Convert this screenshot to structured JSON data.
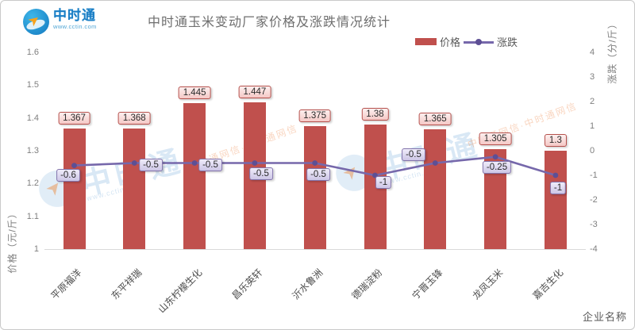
{
  "brand": {
    "name": "中时通",
    "url": "www.cctin.com"
  },
  "header": {
    "title": "中时通玉米变动厂家价格及涨跌情况统计"
  },
  "watermark": {
    "brand_text": "中时通",
    "url_text": "www.cctin.com",
    "line_text": "中时通网信·中时通网信"
  },
  "chart_data": {
    "type": "bar",
    "title": "中时通玉米变动厂家价格及涨跌情况统计",
    "categories": [
      "平原福洋",
      "东平祥瑞",
      "山东柠檬生化",
      "昌乐英轩",
      "沂水鲁洲",
      "德瑞淀粉",
      "宁晋玉锋",
      "龙凤玉米",
      "嘉吉生化"
    ],
    "series": [
      {
        "name": "价格",
        "type": "bar",
        "axis": "left",
        "color": "#c0504d",
        "values": [
          1.367,
          1.368,
          1.445,
          1.447,
          1.375,
          1.38,
          1.365,
          1.305,
          1.3
        ],
        "labels": [
          "1.367",
          "1.368",
          "1.445",
          "1.447",
          "1.375",
          "1.38",
          "1.365",
          "1.305",
          "1.3"
        ]
      },
      {
        "name": "涨跌",
        "type": "line",
        "axis": "right",
        "color": "#7668ab",
        "values": [
          -0.6,
          -0.5,
          -0.5,
          -0.5,
          -0.5,
          -1,
          -0.5,
          -0.25,
          -1
        ],
        "labels": [
          "-0.6",
          "-0.5",
          "-0.5",
          "-0.5",
          "-0.5",
          "-1",
          "-0.5",
          "-0.25",
          "-1"
        ]
      }
    ],
    "left_axis": {
      "label": "价格（元/斤）",
      "min": 1,
      "max": 1.6,
      "ticks": [
        "1.6",
        "1.5",
        "1.4",
        "1.3",
        "1.2",
        "1.1",
        "1"
      ]
    },
    "right_axis": {
      "label": "涨跌（分/斤）",
      "min": -4,
      "max": 4,
      "ticks": [
        "4",
        "3",
        "2",
        "1",
        "0",
        "-1",
        "-2",
        "-3",
        "-4"
      ]
    },
    "x_axis": {
      "label": "企业名称"
    },
    "legend_position": "top",
    "grid": false
  }
}
